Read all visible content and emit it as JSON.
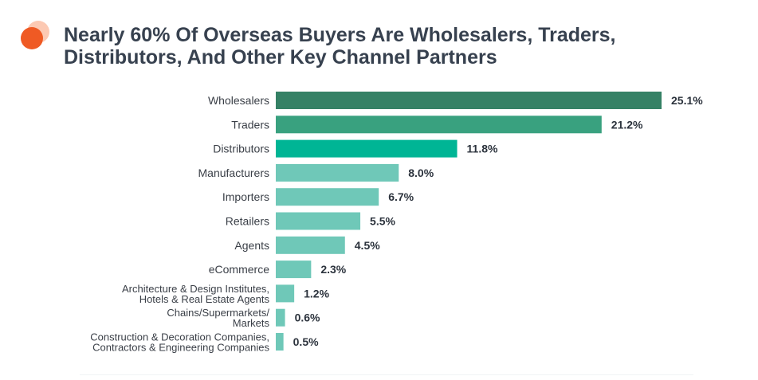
{
  "title_lines": [
    "Nearly 60% Of Overseas Buyers Are Wholesalers, Traders,",
    "Distributors, And Other Key Channel Partners"
  ],
  "colors": {
    "title": "#37414f",
    "logo_dark": "#ef5a24",
    "logo_light": "#fcc9b3",
    "label": "#3a3f47",
    "value": "#2c333d",
    "bar_1": "#358165",
    "bar_2": "#39a17f",
    "bar_3": "#00b595",
    "bar_rest": "#6fc8b8"
  },
  "chart_data": {
    "type": "bar",
    "orientation": "horizontal",
    "title": "Nearly 60% Of Overseas Buyers Are Wholesalers, Traders, Distributors, And Other Key Channel Partners",
    "categories": [
      [
        "Wholesalers"
      ],
      [
        "Traders"
      ],
      [
        "Distributors"
      ],
      [
        "Manufacturers"
      ],
      [
        "Importers"
      ],
      [
        "Retailers"
      ],
      [
        "Agents"
      ],
      [
        "eCommerce"
      ],
      [
        "Architecture & Design Institutes,",
        "Hotels & Real Estate Agents"
      ],
      [
        "Chains/Supermarkets/",
        "Markets"
      ],
      [
        "Construction & Decoration Companies,",
        "Contractors & Engineering Companies"
      ]
    ],
    "values": [
      25.1,
      21.2,
      11.8,
      8.0,
      6.7,
      5.5,
      4.5,
      2.3,
      1.2,
      0.6,
      0.5
    ],
    "value_labels": [
      "25.1%",
      "21.2%",
      "11.8%",
      "8.0%",
      "6.7%",
      "5.5%",
      "4.5%",
      "2.3%",
      "1.2%",
      "0.6%",
      "0.5%"
    ],
    "xlim": [
      0,
      25.1
    ],
    "grid": false,
    "xlabel": "",
    "ylabel": ""
  }
}
